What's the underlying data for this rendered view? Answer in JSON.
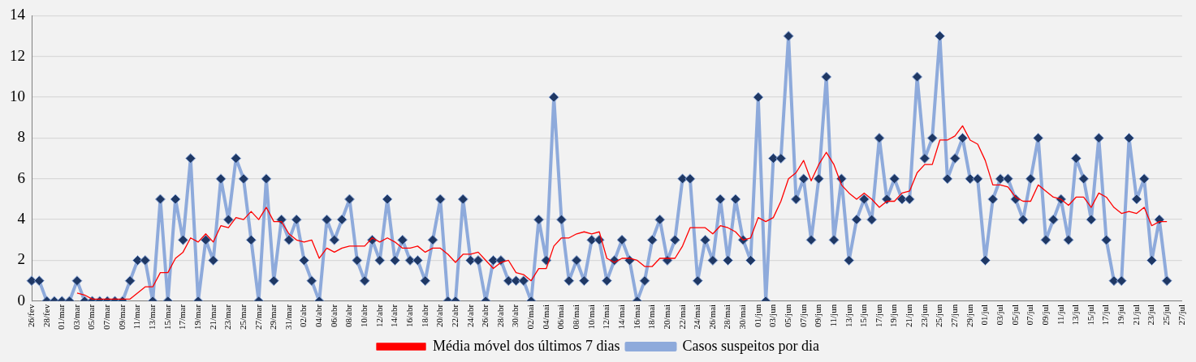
{
  "chart_data": {
    "type": "line",
    "categories": [
      "26/fev",
      null,
      "28/fev",
      null,
      "01/mar",
      null,
      "03/mar",
      null,
      "05/mar",
      null,
      "07/mar",
      null,
      "09/mar",
      null,
      "11/mar",
      null,
      "13/mar",
      null,
      "15/mar",
      null,
      "17/mar",
      null,
      "19/mar",
      null,
      "21/mar",
      null,
      "23/mar",
      null,
      "25/mar",
      null,
      "27/mar",
      null,
      "29/mar",
      null,
      "31/mar",
      null,
      "02/abr",
      null,
      "04/abr",
      null,
      "06/abr",
      null,
      "08/abr",
      null,
      "10/abr",
      null,
      "12/abr",
      null,
      "14/abr",
      null,
      "16/abr",
      null,
      "18/abr",
      null,
      "20/abr",
      null,
      "22/abr",
      null,
      "24/abr",
      null,
      "26/abr",
      null,
      "28/abr",
      null,
      "30/abr",
      null,
      "02/mai",
      null,
      "04/mai",
      null,
      "06/mai",
      null,
      "08/mai",
      null,
      "10/mai",
      null,
      "12/mai",
      null,
      "14/mai",
      null,
      "16/mai",
      null,
      "18/mai",
      null,
      "20/mai",
      null,
      "22/mai",
      null,
      "24/mai",
      null,
      "26/mai",
      null,
      "28/mai",
      null,
      "30/mai",
      null,
      "01/jun",
      null,
      "03/jun",
      null,
      "05/jun",
      null,
      "07/jun",
      null,
      "09/jun",
      null,
      "11/jun",
      null,
      "13/jun",
      null,
      "15/jun",
      null,
      "17/jun",
      null,
      "19/jun",
      null,
      "21/jun",
      null,
      "23/jun",
      null,
      "25/jun",
      null,
      "27/jun",
      null,
      "29/jun",
      null,
      "01/jul",
      null,
      "03/jul",
      null,
      "05/jul",
      null,
      "07/jul",
      null,
      "09/jul",
      null,
      "11/jul",
      null,
      "13/jul",
      null,
      "15/jul",
      null,
      "17/jul",
      null,
      "19/jul",
      null,
      "21/jul",
      null,
      "23/jul",
      null,
      "25/jul",
      null,
      "27/jul"
    ],
    "series": [
      {
        "name": "Casos suspeitos por dia",
        "color": "#8eaadb",
        "marker": "diamond",
        "values": [
          1,
          1,
          0,
          0,
          0,
          0,
          1,
          0,
          0,
          0,
          0,
          0,
          0,
          1,
          2,
          2,
          0,
          5,
          0,
          5,
          3,
          7,
          0,
          3,
          2,
          6,
          4,
          7,
          6,
          3,
          0,
          6,
          1,
          4,
          3,
          4,
          2,
          1,
          0,
          4,
          3,
          4,
          5,
          2,
          1,
          3,
          2,
          5,
          2,
          3,
          2,
          2,
          1,
          3,
          5,
          0,
          0,
          5,
          2,
          2,
          0,
          2,
          2,
          1,
          1,
          1,
          0,
          4,
          2,
          10,
          4,
          1,
          2,
          1,
          3,
          3,
          1,
          2,
          3,
          2,
          0,
          1,
          3,
          4,
          2,
          3,
          6,
          6,
          1,
          3,
          2,
          5,
          2,
          5,
          3,
          2,
          10,
          0,
          7,
          7,
          13,
          5,
          6,
          3,
          6,
          11,
          3,
          6,
          2,
          4,
          5,
          4,
          8,
          5,
          6,
          5,
          5,
          11,
          7,
          8,
          13,
          6,
          7,
          8,
          6,
          6,
          2,
          5,
          6,
          6,
          5,
          4,
          6,
          8,
          3,
          4,
          5,
          3,
          7,
          6,
          4,
          8,
          3,
          1,
          1,
          8,
          5,
          6,
          2,
          4,
          1,
          null,
          null
        ]
      },
      {
        "name": "Média móvel dos últimos 7 dias",
        "color": "#ff0000",
        "marker": "none",
        "values": [
          null,
          null,
          null,
          null,
          null,
          null,
          0.4,
          0.3,
          0.1,
          0.1,
          0.1,
          0.1,
          0.1,
          0.1,
          0.4,
          0.7,
          0.7,
          1.4,
          1.4,
          2.1,
          2.4,
          3.1,
          2.9,
          3.3,
          2.9,
          3.7,
          3.6,
          4.1,
          4.0,
          4.4,
          4.0,
          4.6,
          3.9,
          3.9,
          3.3,
          3.0,
          2.9,
          3.0,
          2.1,
          2.6,
          2.4,
          2.6,
          2.7,
          2.7,
          2.7,
          3.1,
          2.9,
          3.1,
          2.9,
          2.6,
          2.6,
          2.7,
          2.4,
          2.6,
          2.6,
          2.3,
          1.9,
          2.3,
          2.3,
          2.4,
          2.0,
          1.6,
          1.9,
          2.0,
          1.4,
          1.3,
          1.0,
          1.6,
          1.6,
          2.7,
          3.1,
          3.1,
          3.3,
          3.4,
          3.3,
          3.4,
          2.1,
          1.9,
          2.1,
          2.1,
          2.0,
          1.7,
          1.7,
          2.1,
          2.1,
          2.1,
          2.7,
          3.6,
          3.6,
          3.6,
          3.3,
          3.7,
          3.6,
          3.4,
          3.0,
          3.1,
          4.1,
          3.9,
          4.1,
          4.9,
          6.0,
          6.3,
          6.9,
          5.9,
          6.7,
          7.3,
          6.7,
          5.7,
          5.3,
          5.0,
          5.3,
          5.0,
          4.6,
          4.9,
          4.9,
          5.3,
          5.4,
          6.3,
          6.7,
          6.7,
          7.9,
          7.9,
          8.1,
          8.6,
          7.9,
          7.7,
          6.9,
          5.7,
          5.7,
          5.6,
          5.1,
          4.9,
          4.9,
          5.7,
          5.4,
          5.1,
          5.0,
          4.7,
          5.1,
          5.1,
          4.6,
          5.3,
          5.1,
          4.6,
          4.3,
          4.4,
          4.3,
          4.6,
          3.7,
          3.9,
          3.9,
          null,
          null
        ]
      }
    ],
    "ylim": [
      0,
      14
    ],
    "yticks": [
      0,
      2,
      4,
      6,
      8,
      10,
      12,
      14
    ],
    "grid": "y",
    "legend": "bottom"
  }
}
